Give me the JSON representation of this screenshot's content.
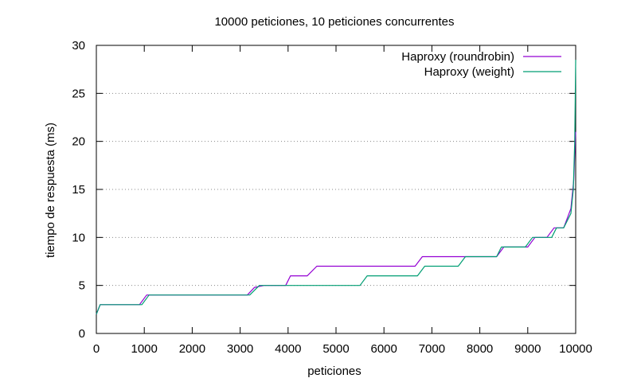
{
  "chart_data": {
    "type": "line",
    "title": "10000 peticiones, 10 peticiones concurrentes",
    "xlabel": "peticiones",
    "ylabel": "tiempo de respuesta (ms)",
    "xlim": [
      0,
      10000
    ],
    "ylim": [
      0,
      30
    ],
    "xticks": [
      "0",
      "1000",
      "2000",
      "3000",
      "4000",
      "5000",
      "6000",
      "7000",
      "8000",
      "9000",
      "10000"
    ],
    "yticks": [
      "0",
      "5",
      "10",
      "15",
      "20",
      "25",
      "30"
    ],
    "grid": "horizontal-dotted",
    "legend_position": "top-right",
    "series": [
      {
        "name": "Haproxy (roundrobin)",
        "color": "#9400d3",
        "points": [
          [
            0,
            2
          ],
          [
            80,
            3
          ],
          [
            900,
            3
          ],
          [
            1050,
            4
          ],
          [
            3150,
            4
          ],
          [
            3300,
            4.8
          ],
          [
            3500,
            5
          ],
          [
            3950,
            5
          ],
          [
            4050,
            6
          ],
          [
            4400,
            6
          ],
          [
            4600,
            7
          ],
          [
            6650,
            7
          ],
          [
            6800,
            8
          ],
          [
            7800,
            8
          ],
          [
            8350,
            8
          ],
          [
            8500,
            9
          ],
          [
            9000,
            9
          ],
          [
            9150,
            10
          ],
          [
            9400,
            10
          ],
          [
            9550,
            11
          ],
          [
            9750,
            11
          ],
          [
            9900,
            13
          ],
          [
            9960,
            16
          ],
          [
            9990,
            20
          ],
          [
            10000,
            21
          ]
        ]
      },
      {
        "name": "Haproxy (weight)",
        "color": "#009e73",
        "points": [
          [
            0,
            2
          ],
          [
            80,
            3
          ],
          [
            950,
            3
          ],
          [
            1100,
            4
          ],
          [
            3200,
            4
          ],
          [
            3400,
            5
          ],
          [
            5500,
            5
          ],
          [
            5650,
            6
          ],
          [
            6700,
            6
          ],
          [
            6850,
            7
          ],
          [
            7550,
            7
          ],
          [
            7700,
            8
          ],
          [
            8350,
            8
          ],
          [
            8450,
            9
          ],
          [
            8950,
            9
          ],
          [
            9100,
            10
          ],
          [
            9500,
            10
          ],
          [
            9600,
            11
          ],
          [
            9750,
            11
          ],
          [
            9900,
            12.5
          ],
          [
            9950,
            15
          ],
          [
            9980,
            20
          ],
          [
            10000,
            28.5
          ]
        ]
      }
    ]
  }
}
